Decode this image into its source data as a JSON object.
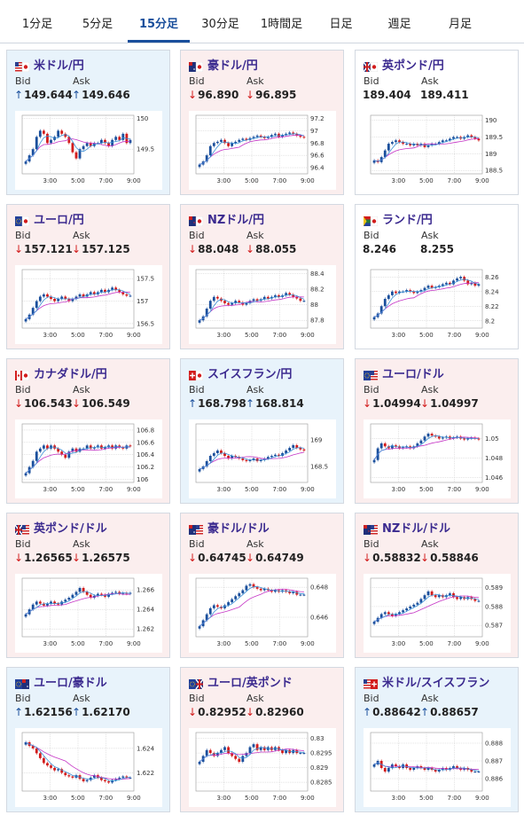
{
  "tabs": [
    {
      "label": "1分足",
      "active": false
    },
    {
      "label": "5分足",
      "active": false
    },
    {
      "label": "15分足",
      "active": true
    },
    {
      "label": "30分足",
      "active": false
    },
    {
      "label": "1時間足",
      "active": false
    },
    {
      "label": "日足",
      "active": false
    },
    {
      "label": "週足",
      "active": false
    },
    {
      "label": "月足",
      "active": false
    }
  ],
  "colors": {
    "up": "#1a4f9c",
    "down": "#d21c1c",
    "ma_fast": "#3a8fd6",
    "ma_slow": "#c533c5",
    "accent": "#3b2a8f"
  },
  "labels": {
    "bid": "Bid",
    "ask": "Ask"
  },
  "cards": [
    {
      "pair": "米ドル/円",
      "flag": "us-jp",
      "trend": "up",
      "bid": "149.644",
      "ask": "149.646",
      "chart_data": {
        "type": "candlestick",
        "yticks": [
          "150",
          "149.5"
        ],
        "yrange": [
          149.1,
          150.05
        ],
        "xticks": [
          "3:00",
          "5:00",
          "7:00",
          "9:00"
        ],
        "close": [
          149.3,
          149.4,
          149.5,
          149.7,
          149.8,
          149.75,
          149.6,
          149.65,
          149.7,
          149.8,
          149.75,
          149.7,
          149.6,
          149.45,
          149.35,
          149.5,
          149.55,
          149.6,
          149.55,
          149.6,
          149.6,
          149.65,
          149.6,
          149.55,
          149.65,
          149.7,
          149.65,
          149.75,
          149.6,
          149.65
        ]
      }
    },
    {
      "pair": "豪ドル/円",
      "flag": "au-jp",
      "trend": "down",
      "bid": "96.890",
      "ask": "96.895",
      "chart_data": {
        "type": "candlestick",
        "yticks": [
          "97.2",
          "97",
          "96.8",
          "96.6",
          "96.4"
        ],
        "yrange": [
          96.3,
          97.25
        ],
        "xticks": [
          "3:00",
          "5:00",
          "7:00",
          "9:00"
        ],
        "close": [
          96.45,
          96.5,
          96.6,
          96.75,
          96.8,
          96.82,
          96.85,
          96.8,
          96.75,
          96.8,
          96.82,
          96.85,
          96.87,
          96.85,
          96.88,
          96.9,
          96.92,
          96.9,
          96.88,
          96.9,
          96.93,
          96.95,
          96.9,
          96.93,
          96.95,
          96.97,
          96.95,
          96.92,
          96.9,
          96.89
        ]
      }
    },
    {
      "pair": "英ポンド/円",
      "flag": "gb-jp",
      "trend": "flat",
      "bid": "189.404",
      "ask": "189.411",
      "chart_data": {
        "type": "candlestick",
        "yticks": [
          "190",
          "189.5",
          "189",
          "188.5"
        ],
        "yrange": [
          188.4,
          190.15
        ],
        "xticks": [
          "3:00",
          "5:00",
          "7:00",
          "9:00"
        ],
        "close": [
          188.8,
          188.75,
          188.9,
          189.1,
          189.3,
          189.35,
          189.4,
          189.35,
          189.3,
          189.3,
          189.25,
          189.3,
          189.25,
          189.3,
          189.2,
          189.25,
          189.3,
          189.3,
          189.35,
          189.4,
          189.4,
          189.45,
          189.5,
          189.5,
          189.45,
          189.5,
          189.55,
          189.5,
          189.45,
          189.4
        ]
      }
    },
    {
      "pair": "ユーロ/円",
      "flag": "eu-jp",
      "trend": "down",
      "bid": "157.121",
      "ask": "157.125",
      "chart_data": {
        "type": "candlestick",
        "yticks": [
          "157.5",
          "157",
          "156.5"
        ],
        "yrange": [
          156.4,
          157.7
        ],
        "xticks": [
          "3:00",
          "5:00",
          "7:00",
          "9:00"
        ],
        "close": [
          156.6,
          156.7,
          156.85,
          157,
          157.1,
          157.15,
          157.1,
          157.05,
          157,
          157.05,
          157.1,
          157.05,
          157,
          157.05,
          157.1,
          157.15,
          157.1,
          157.15,
          157.2,
          157.15,
          157.2,
          157.25,
          157.2,
          157.25,
          157.3,
          157.25,
          157.2,
          157.15,
          157.12,
          157.12
        ]
      }
    },
    {
      "pair": "NZドル/円",
      "flag": "nz-jp",
      "trend": "down",
      "bid": "88.048",
      "ask": "88.055",
      "chart_data": {
        "type": "candlestick",
        "yticks": [
          "88.4",
          "88.2",
          "88",
          "87.8"
        ],
        "yrange": [
          87.7,
          88.45
        ],
        "xticks": [
          "3:00",
          "5:00",
          "7:00",
          "9:00"
        ],
        "close": [
          87.8,
          87.85,
          87.95,
          88.05,
          88.1,
          88.08,
          88.05,
          88.02,
          88,
          88.02,
          88.05,
          88.03,
          88,
          88.02,
          88.05,
          88.07,
          88.05,
          88.07,
          88.1,
          88.08,
          88.1,
          88.12,
          88.1,
          88.12,
          88.15,
          88.13,
          88.1,
          88.08,
          88.05,
          88.05
        ]
      }
    },
    {
      "pair": "ランド/円",
      "flag": "za-jp",
      "trend": "flat",
      "bid": "8.246",
      "ask": "8.255",
      "chart_data": {
        "type": "candlestick",
        "yticks": [
          "8.26",
          "8.24",
          "8.22",
          "8.2"
        ],
        "yrange": [
          8.19,
          8.27
        ],
        "xticks": [
          "3:00",
          "5:00",
          "7:00",
          "9:00"
        ],
        "close": [
          8.205,
          8.21,
          8.22,
          8.23,
          8.235,
          8.24,
          8.238,
          8.24,
          8.24,
          8.242,
          8.24,
          8.238,
          8.24,
          8.242,
          8.245,
          8.248,
          8.245,
          8.246,
          8.248,
          8.25,
          8.252,
          8.25,
          8.255,
          8.258,
          8.26,
          8.255,
          8.25,
          8.252,
          8.248,
          8.25
        ]
      }
    },
    {
      "pair": "カナダドル/円",
      "flag": "ca-jp",
      "trend": "down",
      "bid": "106.543",
      "ask": "106.549",
      "chart_data": {
        "type": "candlestick",
        "yticks": [
          "106.8",
          "106.6",
          "106.4",
          "106.2",
          "106"
        ],
        "yrange": [
          105.95,
          106.9
        ],
        "xticks": [
          "3:00",
          "5:00",
          "7:00",
          "9:00"
        ],
        "close": [
          106.1,
          106.2,
          106.3,
          106.45,
          106.5,
          106.55,
          106.5,
          106.55,
          106.5,
          106.45,
          106.4,
          106.35,
          106.45,
          106.5,
          106.45,
          106.5,
          106.5,
          106.55,
          106.5,
          106.52,
          106.55,
          106.5,
          106.52,
          106.55,
          106.5,
          106.55,
          106.52,
          106.5,
          106.55,
          106.54
        ]
      }
    },
    {
      "pair": "スイスフラン/円",
      "flag": "ch-jp",
      "trend": "up",
      "bid": "168.798",
      "ask": "168.814",
      "chart_data": {
        "type": "candlestick",
        "yticks": [
          "169",
          "168.5"
        ],
        "yrange": [
          168.2,
          169.3
        ],
        "xticks": [
          "3:00",
          "5:00",
          "7:00",
          "9:00"
        ],
        "close": [
          168.45,
          168.5,
          168.6,
          168.7,
          168.75,
          168.8,
          168.75,
          168.7,
          168.65,
          168.7,
          168.68,
          168.65,
          168.62,
          168.6,
          168.62,
          168.65,
          168.6,
          168.62,
          168.65,
          168.68,
          168.7,
          168.72,
          168.7,
          168.75,
          168.8,
          168.85,
          168.9,
          168.85,
          168.82,
          168.8
        ]
      }
    },
    {
      "pair": "ユーロ/ドル",
      "flag": "eu-us",
      "trend": "down",
      "bid": "1.04994",
      "ask": "1.04997",
      "chart_data": {
        "type": "candlestick",
        "yticks": [
          "1.05",
          "1.048",
          "1.046"
        ],
        "yrange": [
          1.0455,
          1.0515
        ],
        "xticks": [
          "3:00",
          "5:00",
          "7:00",
          "9:00"
        ],
        "close": [
          1.0478,
          1.049,
          1.0495,
          1.0492,
          1.049,
          1.0493,
          1.0492,
          1.049,
          1.0491,
          1.0492,
          1.049,
          1.0492,
          1.0495,
          1.0498,
          1.0502,
          1.0505,
          1.0503,
          1.0502,
          1.05,
          1.0501,
          1.0502,
          1.05,
          1.0501,
          1.0502,
          1.05,
          1.0499,
          1.05,
          1.0501,
          1.05,
          1.0499
        ]
      }
    },
    {
      "pair": "英ポンド/ドル",
      "flag": "gb-us",
      "trend": "down",
      "bid": "1.26565",
      "ask": "1.26575",
      "chart_data": {
        "type": "candlestick",
        "yticks": [
          "1.266",
          "1.264",
          "1.262"
        ],
        "yrange": [
          1.2612,
          1.2672
        ],
        "xticks": [
          "3:00",
          "5:00",
          "7:00",
          "9:00"
        ],
        "close": [
          1.2635,
          1.264,
          1.2645,
          1.2648,
          1.2646,
          1.2644,
          1.2646,
          1.2648,
          1.2646,
          1.2645,
          1.2648,
          1.265,
          1.2652,
          1.2655,
          1.2658,
          1.2662,
          1.2658,
          1.2655,
          1.2652,
          1.2654,
          1.2656,
          1.2655,
          1.2653,
          1.2656,
          1.2657,
          1.2658,
          1.2656,
          1.2657,
          1.2656,
          1.2657
        ]
      }
    },
    {
      "pair": "豪ドル/ドル",
      "flag": "au-us",
      "trend": "down",
      "bid": "0.64745",
      "ask": "0.64749",
      "chart_data": {
        "type": "candlestick",
        "yticks": [
          "0.648",
          "0.646"
        ],
        "yrange": [
          0.6447,
          0.6486
        ],
        "xticks": [
          "3:00",
          "5:00",
          "7:00",
          "9:00"
        ],
        "close": [
          0.6454,
          0.6458,
          0.6462,
          0.6466,
          0.6468,
          0.6467,
          0.6466,
          0.6468,
          0.647,
          0.6472,
          0.6474,
          0.6476,
          0.6478,
          0.6481,
          0.6482,
          0.648,
          0.6479,
          0.6478,
          0.6479,
          0.6478,
          0.6477,
          0.6478,
          0.6477,
          0.6478,
          0.6477,
          0.6476,
          0.6477,
          0.6475,
          0.6475,
          0.6475
        ]
      }
    },
    {
      "pair": "NZドル/ドル",
      "flag": "nz-us",
      "trend": "down",
      "bid": "0.58832",
      "ask": "0.58846",
      "chart_data": {
        "type": "candlestick",
        "yticks": [
          "0.589",
          "0.588",
          "0.587"
        ],
        "yrange": [
          0.5864,
          0.5895
        ],
        "xticks": [
          "3:00",
          "5:00",
          "7:00",
          "9:00"
        ],
        "close": [
          0.5872,
          0.5874,
          0.5876,
          0.5877,
          0.5876,
          0.5875,
          0.5876,
          0.5877,
          0.5878,
          0.5879,
          0.588,
          0.5881,
          0.5882,
          0.5884,
          0.5886,
          0.5888,
          0.5886,
          0.5885,
          0.5886,
          0.5885,
          0.5886,
          0.5887,
          0.5885,
          0.5884,
          0.5885,
          0.5884,
          0.5885,
          0.5884,
          0.5883,
          0.5883
        ]
      }
    },
    {
      "pair": "ユーロ/豪ドル",
      "flag": "eu-au",
      "trend": "up",
      "bid": "1.62156",
      "ask": "1.62170",
      "chart_data": {
        "type": "candlestick",
        "yticks": [
          "1.624",
          "1.622"
        ],
        "yrange": [
          1.6205,
          1.6253
        ],
        "xticks": [
          "3:00",
          "5:00",
          "7:00",
          "9:00"
        ],
        "close": [
          1.6245,
          1.6242,
          1.624,
          1.6236,
          1.6232,
          1.6228,
          1.6226,
          1.6224,
          1.6222,
          1.6223,
          1.622,
          1.6218,
          1.6217,
          1.6216,
          1.6218,
          1.6215,
          1.6213,
          1.6214,
          1.6216,
          1.6218,
          1.6216,
          1.6214,
          1.6213,
          1.6212,
          1.6214,
          1.6215,
          1.6216,
          1.6217,
          1.6216,
          1.6216
        ]
      }
    },
    {
      "pair": "ユーロ/英ポンド",
      "flag": "eu-gb",
      "trend": "down",
      "bid": "0.82952",
      "ask": "0.82960",
      "chart_data": {
        "type": "candlestick",
        "yticks": [
          "0.83",
          "0.8295",
          "0.829",
          "0.8285"
        ],
        "yrange": [
          0.8282,
          0.8302
        ],
        "xticks": [
          "3:00",
          "5:00",
          "7:00",
          "9:00"
        ],
        "close": [
          0.8292,
          0.8294,
          0.8296,
          0.8295,
          0.8294,
          0.8295,
          0.8296,
          0.8297,
          0.8295,
          0.8294,
          0.8293,
          0.8292,
          0.8294,
          0.8295,
          0.8297,
          0.8298,
          0.8296,
          0.8297,
          0.8296,
          0.8297,
          0.8296,
          0.8297,
          0.8296,
          0.8295,
          0.8296,
          0.8295,
          0.8296,
          0.8295,
          0.8295,
          0.8295
        ]
      }
    },
    {
      "pair": "米ドル/スイスフラン",
      "flag": "us-ch",
      "trend": "up",
      "bid": "0.88642",
      "ask": "0.88657",
      "chart_data": {
        "type": "candlestick",
        "yticks": [
          "0.888",
          "0.887",
          "0.886"
        ],
        "yrange": [
          0.8853,
          0.8886
        ],
        "xticks": [
          "3:00",
          "5:00",
          "7:00",
          "9:00"
        ],
        "close": [
          0.8868,
          0.887,
          0.8866,
          0.8864,
          0.8866,
          0.8868,
          0.8867,
          0.8866,
          0.8868,
          0.8866,
          0.8865,
          0.8866,
          0.8867,
          0.8866,
          0.8865,
          0.8866,
          0.8865,
          0.8864,
          0.8865,
          0.8866,
          0.8865,
          0.8866,
          0.8867,
          0.8866,
          0.8865,
          0.8866,
          0.8865,
          0.8864,
          0.8864,
          0.8864
        ]
      }
    }
  ]
}
